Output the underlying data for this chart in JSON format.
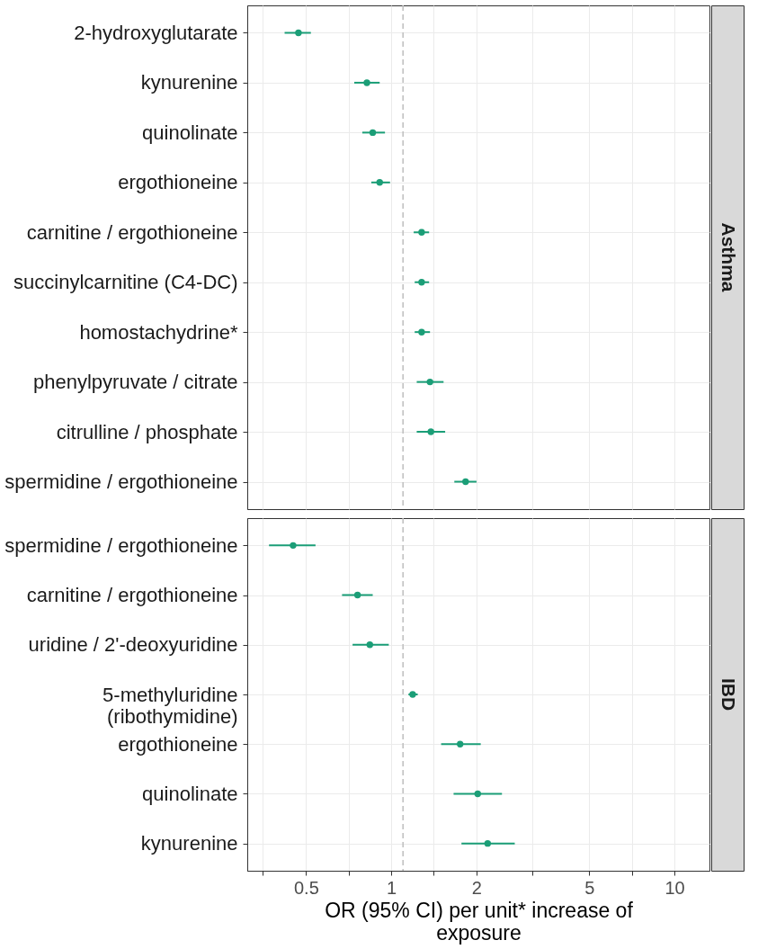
{
  "chart_data": [
    {
      "type": "scatter",
      "orientation": "horizontal",
      "title": "Asthma",
      "categories": [
        "2-hydroxyglutarate",
        "kynurenine",
        "quinolinate",
        "ergothioneine",
        "carnitine / ergothioneine",
        "succinylcarnitine (C4-DC)",
        "homostachydrine*",
        "phenylpyruvate / citrate",
        "citrulline / phosphate",
        "spermidine / ergothioneine"
      ],
      "values": [
        0.47,
        0.82,
        0.86,
        0.91,
        1.28,
        1.28,
        1.28,
        1.37,
        1.38,
        1.83
      ],
      "errors": [
        [
          0.42,
          0.52
        ],
        [
          0.74,
          0.91
        ],
        [
          0.79,
          0.95
        ],
        [
          0.85,
          0.99
        ],
        [
          1.2,
          1.36
        ],
        [
          1.21,
          1.36
        ],
        [
          1.21,
          1.37
        ],
        [
          1.23,
          1.53
        ],
        [
          1.23,
          1.55
        ],
        [
          1.67,
          2.0
        ]
      ],
      "color": "#1b9e77",
      "marker": "circle",
      "log": "x",
      "xlim": [
        0.31,
        13.3
      ],
      "xticks": [
        {
          "value": 0.35,
          "label": null
        },
        0.5,
        {
          "value": 0.71,
          "label": null
        },
        1,
        {
          "value": 1.41,
          "label": null
        },
        2,
        {
          "value": 3.16,
          "label": null
        },
        5,
        {
          "value": 7.07,
          "label": null
        },
        10
      ],
      "ref_lines": [
        {
          "axis": "x",
          "value": 1.1,
          "color": "#bebebe",
          "line_style": "dashed"
        }
      ],
      "grid": true,
      "tick_labels": "y"
    },
    {
      "type": "scatter",
      "orientation": "horizontal",
      "title": "IBD",
      "xlabel": "OR (95% CI) per unit* increase of exposure",
      "categories": [
        "spermidine / ergothioneine",
        "carnitine / ergothioneine",
        "uridine / 2'-deoxyuridine",
        "5-methyluridine (ribothymidine)",
        "ergothioneine",
        "quinolinate",
        "kynurenine"
      ],
      "values": [
        0.45,
        0.76,
        0.84,
        1.19,
        1.75,
        2.02,
        2.19
      ],
      "errors": [
        [
          0.37,
          0.54
        ],
        [
          0.67,
          0.86
        ],
        [
          0.73,
          0.98
        ],
        [
          1.15,
          1.24
        ],
        [
          1.5,
          2.07
        ],
        [
          1.66,
          2.46
        ],
        [
          1.77,
          2.73
        ]
      ],
      "color": "#1b9e77",
      "marker": "circle",
      "log": "x",
      "xlim": [
        0.31,
        13.3
      ],
      "xticks": [
        {
          "value": 0.35,
          "label": null
        },
        0.5,
        {
          "value": 0.71,
          "label": null
        },
        1,
        {
          "value": 1.41,
          "label": null
        },
        2,
        {
          "value": 3.16,
          "label": null
        },
        5,
        {
          "value": 7.07,
          "label": null
        },
        10
      ],
      "ref_lines": [
        {
          "axis": "x",
          "value": 1.1,
          "color": "#bebebe",
          "line_style": "dashed"
        }
      ],
      "grid": true
    }
  ]
}
